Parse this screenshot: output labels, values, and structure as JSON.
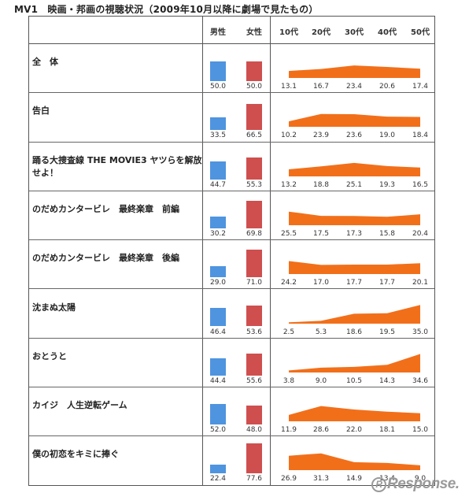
{
  "title": "MV1　映画・邦画の視聴状況（2009年10月以降に劇場で見たもの）",
  "headers": {
    "male": "男性",
    "female": "女性",
    "ages": [
      "10代",
      "20代",
      "30代",
      "40代",
      "50代"
    ]
  },
  "colors": {
    "male": "#4f94df",
    "female": "#cf4f4f",
    "age_area": "#f26f1a"
  },
  "watermark": "Response.",
  "chart_data": {
    "type": "bar",
    "categories": [
      "全　体",
      "告白",
      "踊る大捜査線 THE MOVIE3 ヤツらを解放せよ！",
      "のだめカンタービレ　最終楽章　前編",
      "のだめカンタービレ　最終楽章　後編",
      "沈まぬ太陽",
      "おとうと",
      "カイジ　人生逆転ゲーム",
      "僕の初恋をキミに捧ぐ"
    ],
    "gender_series": [
      {
        "name": "男性",
        "values": [
          50.0,
          33.5,
          44.7,
          30.2,
          29.0,
          46.4,
          44.4,
          52.0,
          22.4
        ]
      },
      {
        "name": "女性",
        "values": [
          50.0,
          66.5,
          55.3,
          69.8,
          71.0,
          53.6,
          55.6,
          48.0,
          77.6
        ]
      }
    ],
    "age_categories": [
      "10代",
      "20代",
      "30代",
      "40代",
      "50代"
    ],
    "age_series": [
      [
        13.1,
        16.7,
        23.4,
        20.6,
        17.4
      ],
      [
        10.2,
        23.9,
        23.6,
        19.0,
        18.4
      ],
      [
        13.2,
        18.8,
        25.1,
        19.3,
        16.5
      ],
      [
        25.5,
        17.5,
        17.3,
        15.8,
        20.4
      ],
      [
        24.2,
        17.0,
        17.7,
        17.7,
        20.1
      ],
      [
        2.5,
        5.3,
        18.6,
        19.5,
        35.0
      ],
      [
        3.8,
        9.0,
        10.5,
        14.3,
        34.6
      ],
      [
        11.9,
        28.6,
        22.0,
        18.1,
        15.0
      ],
      [
        26.9,
        31.3,
        14.9,
        13.4,
        9.0
      ]
    ]
  }
}
